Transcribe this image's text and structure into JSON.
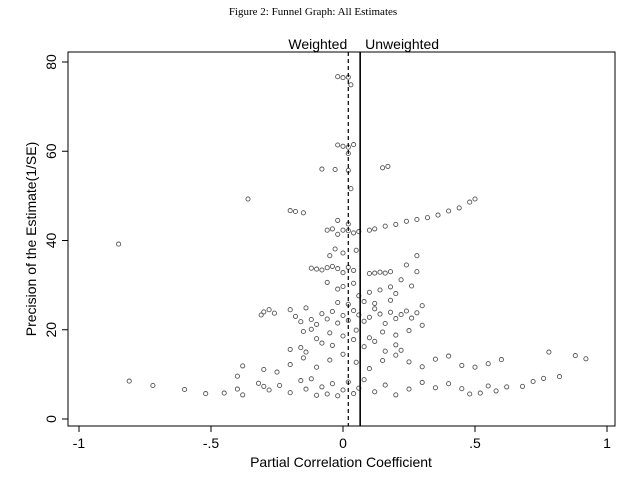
{
  "figure_caption": "Figure 2: Funnel Graph: All Estimates",
  "colors": {
    "marker": "#555555",
    "axis": "#000000",
    "background": "#ffffff"
  },
  "chart_data": {
    "type": "scatter",
    "title": "",
    "xlabel": "Partial Correlation Coefficient",
    "ylabel": "Precision of the Estimate(1/SE)",
    "xlim": [
      -1,
      1
    ],
    "ylim": [
      0,
      80
    ],
    "xticks": [
      -1,
      -0.5,
      0,
      0.5,
      1
    ],
    "xtick_labels": [
      "-1",
      "-.5",
      "0",
      ".5",
      "1"
    ],
    "yticks": [
      0,
      20,
      40,
      60,
      80
    ],
    "ytick_labels": [
      "0",
      "20",
      "40",
      "60",
      "80"
    ],
    "grid": false,
    "legend": "none",
    "marker": "hollow-circle",
    "reference_lines": [
      {
        "label": "Weighted",
        "x": 0.02,
        "style": "dashed"
      },
      {
        "label": "Unweighted",
        "x": 0.065,
        "style": "solid"
      }
    ],
    "points": [
      [
        -0.85,
        39.2
      ],
      [
        -0.36,
        49.3
      ],
      [
        -0.81,
        8.5
      ],
      [
        -0.72,
        7.5
      ],
      [
        -0.6,
        6.6
      ],
      [
        -0.52,
        5.7
      ],
      [
        -0.45,
        5.8
      ],
      [
        -0.4,
        6.7
      ],
      [
        -0.38,
        5.4
      ],
      [
        -0.32,
        8.0
      ],
      [
        -0.3,
        7.3
      ],
      [
        -0.28,
        6.5
      ],
      [
        -0.24,
        7.5
      ],
      [
        -0.2,
        5.9
      ],
      [
        -0.16,
        8.6
      ],
      [
        -0.14,
        6.7
      ],
      [
        -0.12,
        9.0
      ],
      [
        -0.1,
        5.3
      ],
      [
        -0.08,
        7.2
      ],
      [
        -0.06,
        5.6
      ],
      [
        -0.04,
        7.9
      ],
      [
        -0.02,
        5.2
      ],
      [
        0.0,
        6.5
      ],
      [
        0.02,
        8.3
      ],
      [
        0.04,
        5.7
      ],
      [
        0.06,
        6.9
      ],
      [
        0.08,
        8.8
      ],
      [
        0.12,
        6.1
      ],
      [
        0.16,
        7.6
      ],
      [
        0.2,
        5.4
      ],
      [
        0.25,
        6.7
      ],
      [
        0.3,
        8.2
      ],
      [
        0.35,
        7.0
      ],
      [
        0.4,
        7.9
      ],
      [
        0.45,
        6.8
      ],
      [
        0.48,
        5.6
      ],
      [
        0.52,
        5.8
      ],
      [
        0.55,
        7.4
      ],
      [
        0.58,
        6.3
      ],
      [
        0.62,
        7.2
      ],
      [
        0.68,
        7.3
      ],
      [
        0.72,
        8.4
      ],
      [
        0.76,
        9.1
      ],
      [
        0.82,
        9.5
      ],
      [
        0.78,
        15.0
      ],
      [
        0.88,
        14.2
      ],
      [
        0.92,
        13.5
      ],
      [
        0.6,
        13.3
      ],
      [
        0.55,
        12.4
      ],
      [
        0.5,
        11.6
      ],
      [
        0.45,
        12.0
      ],
      [
        0.4,
        14.1
      ],
      [
        0.35,
        13.4
      ],
      [
        0.3,
        11.7
      ],
      [
        0.25,
        12.8
      ],
      [
        0.2,
        14.3
      ],
      [
        0.15,
        13.1
      ],
      [
        0.1,
        11.3
      ],
      [
        0.05,
        12.7
      ],
      [
        0.0,
        14.5
      ],
      [
        -0.05,
        13.2
      ],
      [
        -0.1,
        11.6
      ],
      [
        -0.15,
        13.7
      ],
      [
        -0.2,
        12.2
      ],
      [
        -0.25,
        10.5
      ],
      [
        -0.3,
        11.1
      ],
      [
        -0.38,
        11.9
      ],
      [
        -0.4,
        9.6
      ],
      [
        -0.28,
        24.5
      ],
      [
        -0.26,
        23.7
      ],
      [
        -0.3,
        24.0
      ],
      [
        -0.31,
        23.3
      ],
      [
        -0.2,
        24.5
      ],
      [
        -0.18,
        23.0
      ],
      [
        -0.16,
        21.8
      ],
      [
        -0.14,
        24.9
      ],
      [
        -0.12,
        22.3
      ],
      [
        -0.1,
        21.2
      ],
      [
        -0.08,
        23.6
      ],
      [
        -0.06,
        22.4
      ],
      [
        -0.04,
        24.1
      ],
      [
        -0.02,
        21.5
      ],
      [
        0.0,
        23.2
      ],
      [
        0.02,
        22.1
      ],
      [
        0.04,
        24.3
      ],
      [
        0.06,
        23.3
      ],
      [
        0.08,
        21.9
      ],
      [
        0.1,
        22.8
      ],
      [
        0.12,
        24.7
      ],
      [
        0.14,
        23.5
      ],
      [
        0.16,
        21.4
      ],
      [
        0.18,
        23.9
      ],
      [
        0.2,
        22.5
      ],
      [
        0.22,
        23.4
      ],
      [
        0.24,
        24.2
      ],
      [
        0.26,
        22.6
      ],
      [
        0.28,
        23.8
      ],
      [
        0.3,
        25.4
      ],
      [
        0.3,
        21.0
      ],
      [
        0.25,
        19.8
      ],
      [
        0.2,
        18.8
      ],
      [
        0.15,
        19.5
      ],
      [
        0.1,
        18.2
      ],
      [
        0.05,
        19.9
      ],
      [
        0.0,
        18.6
      ],
      [
        -0.05,
        19.3
      ],
      [
        -0.1,
        18.0
      ],
      [
        -0.15,
        19.6
      ],
      [
        -0.12,
        20.1
      ],
      [
        -0.08,
        17.0
      ],
      [
        -0.04,
        16.5
      ],
      [
        0.04,
        17.8
      ],
      [
        0.08,
        16.2
      ],
      [
        0.12,
        17.4
      ],
      [
        -0.16,
        16.0
      ],
      [
        -0.2,
        15.6
      ],
      [
        -0.14,
        15.0
      ],
      [
        0.16,
        15.2
      ],
      [
        0.2,
        16.6
      ],
      [
        0.22,
        15.4
      ],
      [
        0.18,
        26.6
      ],
      [
        0.12,
        25.9
      ],
      [
        0.08,
        26.3
      ],
      [
        0.02,
        25.7
      ],
      [
        -0.02,
        26.1
      ],
      [
        0.06,
        27.6
      ],
      [
        0.1,
        28.4
      ],
      [
        0.14,
        28.9
      ],
      [
        0.18,
        29.6
      ],
      [
        0.2,
        28.1
      ],
      [
        0.0,
        29.7
      ],
      [
        -0.02,
        29.1
      ],
      [
        0.04,
        30.4
      ],
      [
        -0.06,
        30.6
      ],
      [
        0.22,
        31.2
      ],
      [
        0.26,
        29.8
      ],
      [
        0.28,
        33.0
      ],
      [
        0.24,
        34.5
      ],
      [
        -0.12,
        33.8
      ],
      [
        -0.1,
        33.6
      ],
      [
        -0.08,
        33.4
      ],
      [
        -0.06,
        33.9
      ],
      [
        -0.04,
        34.2
      ],
      [
        -0.02,
        33.7
      ],
      [
        0.0,
        32.8
      ],
      [
        0.02,
        34.0
      ],
      [
        0.04,
        33.3
      ],
      [
        0.1,
        32.6
      ],
      [
        0.12,
        32.7
      ],
      [
        0.14,
        32.9
      ],
      [
        0.16,
        32.7
      ],
      [
        0.18,
        33.0
      ],
      [
        0.0,
        37.2
      ],
      [
        -0.05,
        36.6
      ],
      [
        -0.03,
        38.1
      ],
      [
        0.05,
        37.8
      ],
      [
        0.28,
        36.6
      ],
      [
        0.02,
        42.2
      ],
      [
        -0.04,
        42.6
      ],
      [
        -0.02,
        41.4
      ],
      [
        0.0,
        42.3
      ],
      [
        0.04,
        41.7
      ],
      [
        0.06,
        42.0
      ],
      [
        -0.06,
        42.3
      ],
      [
        0.1,
        42.3
      ],
      [
        0.12,
        42.6
      ],
      [
        0.16,
        43.2
      ],
      [
        0.2,
        43.6
      ],
      [
        0.24,
        44.3
      ],
      [
        0.28,
        44.7
      ],
      [
        0.32,
        45.1
      ],
      [
        0.36,
        45.7
      ],
      [
        0.4,
        46.6
      ],
      [
        0.44,
        47.3
      ],
      [
        0.48,
        48.6
      ],
      [
        0.5,
        49.3
      ],
      [
        0.02,
        43.7
      ],
      [
        -0.02,
        44.5
      ],
      [
        -0.2,
        46.7
      ],
      [
        -0.18,
        46.5
      ],
      [
        -0.15,
        46.2
      ],
      [
        -0.08,
        56.0
      ],
      [
        -0.03,
        55.9
      ],
      [
        0.02,
        55.7
      ],
      [
        0.03,
        51.6
      ],
      [
        0.15,
        56.3
      ],
      [
        0.17,
        56.6
      ],
      [
        -0.02,
        61.4
      ],
      [
        0.0,
        61.1
      ],
      [
        0.02,
        60.9
      ],
      [
        0.04,
        61.5
      ],
      [
        0.02,
        59.5
      ],
      [
        -0.02,
        76.7
      ],
      [
        0.0,
        76.5
      ],
      [
        0.02,
        76.6
      ],
      [
        0.03,
        74.9
      ]
    ]
  }
}
